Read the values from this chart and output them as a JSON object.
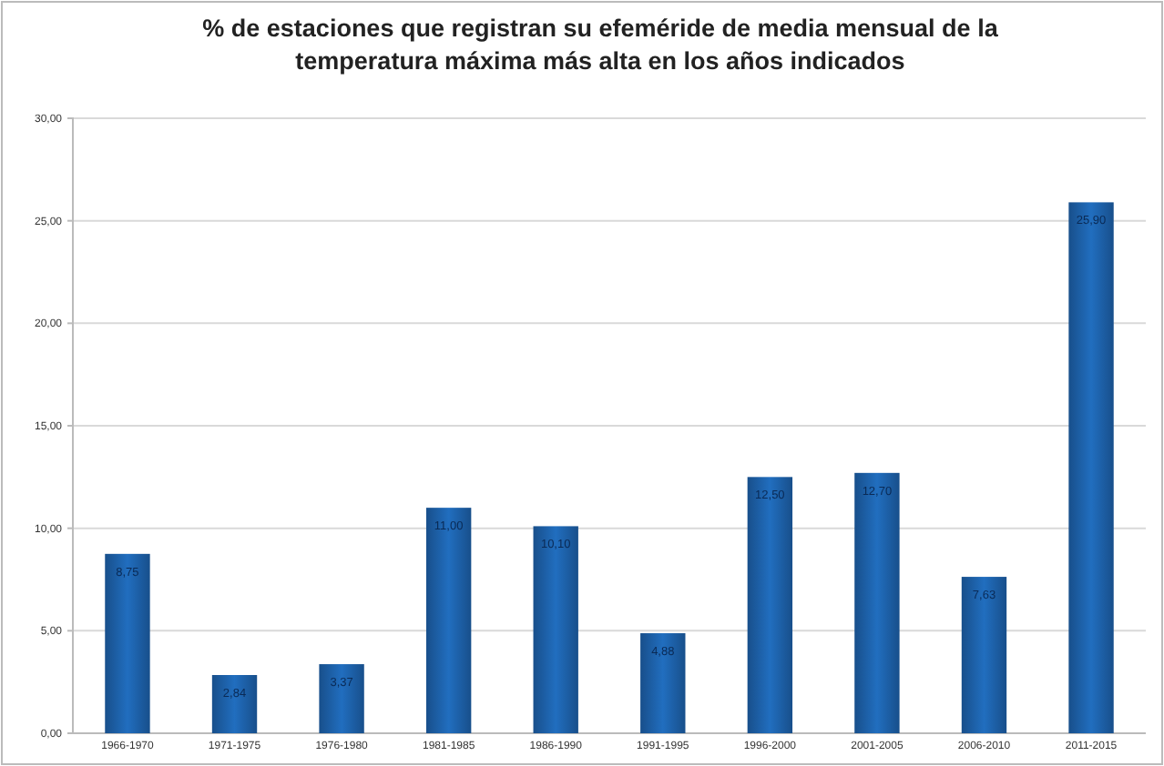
{
  "chart_data": {
    "type": "bar",
    "title": "% de estaciones que registran su efeméride de media mensual de la temperatura máxima más alta en los años indicados",
    "categories": [
      "1966-1970",
      "1971-1975",
      "1976-1980",
      "1981-1985",
      "1986-1990",
      "1991-1995",
      "1996-2000",
      "2001-2005",
      "2006-2010",
      "2011-2015"
    ],
    "values": [
      8.75,
      2.84,
      3.37,
      11.0,
      10.1,
      4.88,
      12.5,
      12.7,
      7.63,
      25.9
    ],
    "value_labels": [
      "8,75",
      "2,84",
      "3,37",
      "11,00",
      "10,10",
      "4,88",
      "12,50",
      "12,70",
      "7,63",
      "25,90"
    ],
    "color": "#1d5fa6",
    "grid": "y",
    "ylim": [
      0,
      30
    ],
    "yticks": [
      {
        "value": 0,
        "label": "0,00"
      },
      {
        "value": 5,
        "label": "5,00"
      },
      {
        "value": 10,
        "label": "10,00"
      },
      {
        "value": 15,
        "label": "15,00"
      },
      {
        "value": 20,
        "label": "20,00"
      },
      {
        "value": 25,
        "label": "25,00"
      },
      {
        "value": 30,
        "label": "30,00"
      }
    ]
  }
}
